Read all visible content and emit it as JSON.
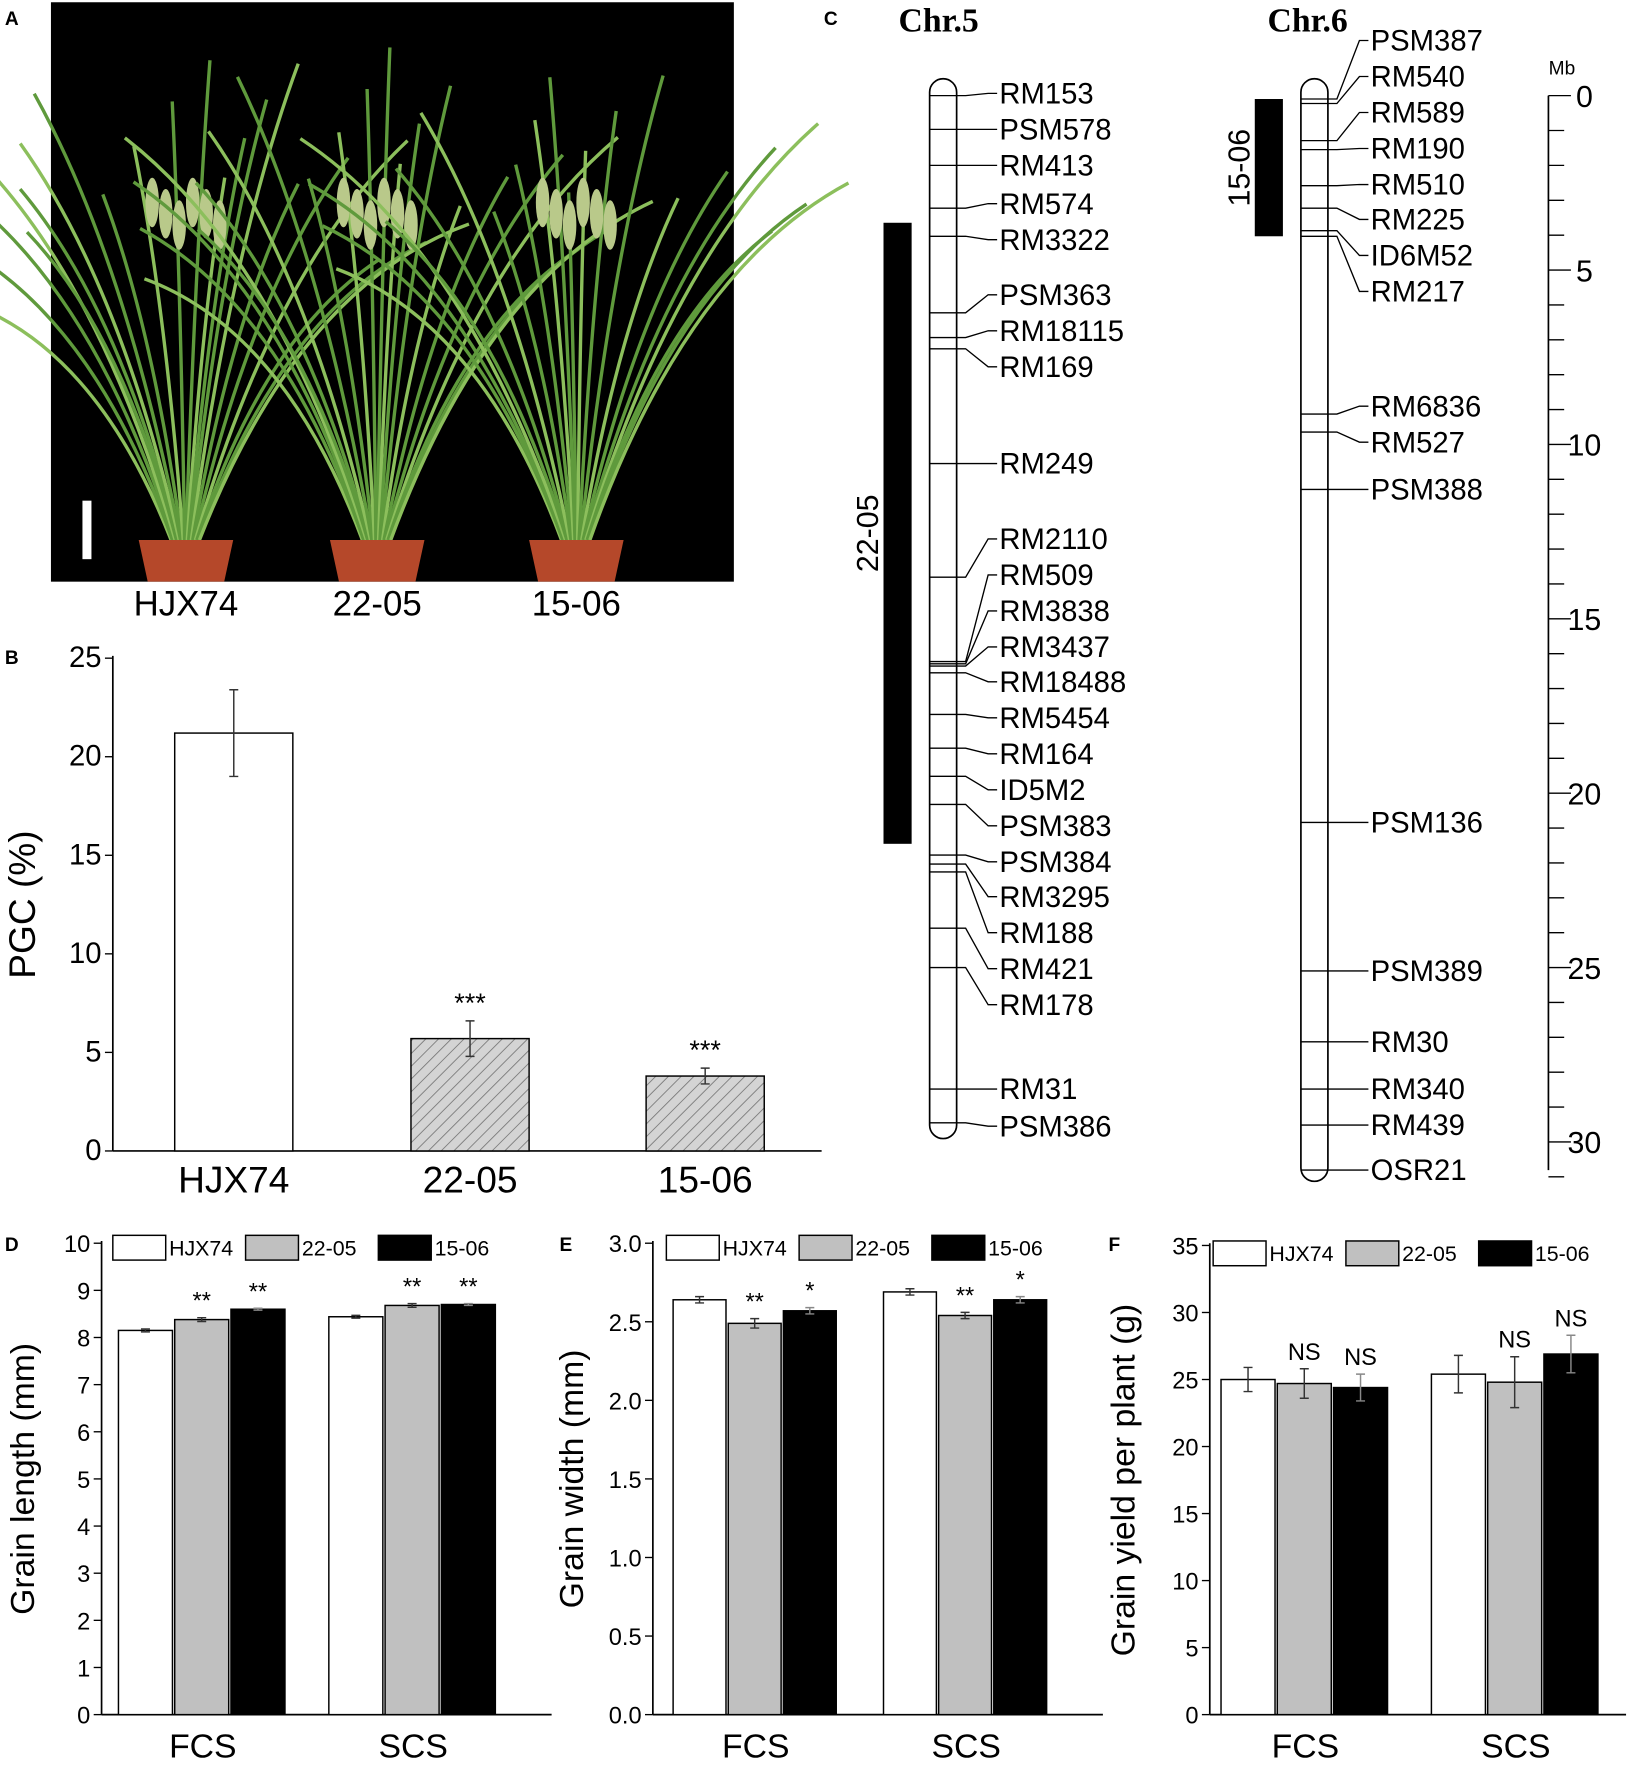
{
  "panels": {
    "a": "A",
    "b": "B",
    "c": "C",
    "d": "D",
    "e": "E",
    "f": "F"
  },
  "photo": {
    "labels": [
      "HJX74",
      "22-05",
      "15-06"
    ],
    "background": "#000000"
  },
  "diagram": {
    "scale_unit": "Mb",
    "scale_ticks": [
      "0",
      "5",
      "10",
      "15",
      "20",
      "25",
      "30"
    ],
    "chromosomes": [
      {
        "name": "Chr.5",
        "segment_label": "22-05",
        "markers": [
          "RM153",
          "PSM578",
          "RM413",
          "RM574",
          "RM3322",
          "PSM363",
          "RM18115",
          "RM169",
          "RM249",
          "RM2110",
          "RM509",
          "RM3838",
          "RM3437",
          "RM18488",
          "RM5454",
          "RM164",
          "ID5M2",
          "PSM383",
          "PSM384",
          "RM3295",
          "RM188",
          "RM421",
          "RM178",
          "RM31",
          "PSM386"
        ]
      },
      {
        "name": "Chr.6",
        "segment_label": "15-06",
        "markers": [
          "PSM387",
          "RM540",
          "RM589",
          "RM190",
          "RM510",
          "RM225",
          "ID6M52",
          "RM217",
          "RM6836",
          "RM527",
          "PSM388",
          "PSM136",
          "PSM389",
          "RM30",
          "RM340",
          "RM439",
          "OSR21"
        ]
      }
    ]
  },
  "chart_data": [
    {
      "id": "B",
      "type": "bar",
      "categories": [
        "HJX74",
        "22-05",
        "15-06"
      ],
      "values": [
        21.2,
        5.7,
        3.8
      ],
      "errors": [
        2.2,
        0.9,
        0.4
      ],
      "annotations": [
        "",
        "***",
        "***"
      ],
      "ylabel": "PGC  (%)",
      "ylim": [
        0,
        25
      ],
      "yticks": [
        0,
        5,
        10,
        15,
        20,
        25
      ],
      "fills": [
        "#ffffff",
        "hatched-gray",
        "hatched-gray"
      ]
    },
    {
      "id": "D",
      "type": "bar",
      "categories": [
        "FCS",
        "SCS"
      ],
      "ylabel": "Grain length (mm)",
      "ylim": [
        0,
        10
      ],
      "yticks": [
        0,
        1,
        2,
        3,
        4,
        5,
        6,
        7,
        8,
        9,
        10
      ],
      "legend": "top",
      "series": [
        {
          "name": "HJX74",
          "color": "#ffffff",
          "values": [
            8.15,
            8.44
          ],
          "errors": [
            0.03,
            0.03
          ],
          "annotations": [
            "",
            ""
          ]
        },
        {
          "name": "22-05",
          "color": "#c0c0c0",
          "values": [
            8.38,
            8.68
          ],
          "errors": [
            0.04,
            0.04
          ],
          "annotations": [
            "**",
            "**"
          ]
        },
        {
          "name": "15-06",
          "color": "#000000",
          "values": [
            8.6,
            8.7
          ],
          "errors": [
            0.02,
            0.02
          ],
          "annotations": [
            "**",
            "**"
          ]
        }
      ]
    },
    {
      "id": "E",
      "type": "bar",
      "categories": [
        "FCS",
        "SCS"
      ],
      "ylabel": "Grain width (mm)",
      "ylim": [
        0,
        3.0
      ],
      "yticks": [
        "0.0",
        "0.5",
        "1.0",
        "1.5",
        "2.0",
        "2.5",
        "3.0"
      ],
      "legend": "top",
      "series": [
        {
          "name": "HJX74",
          "color": "#ffffff",
          "values": [
            2.64,
            2.69
          ],
          "errors": [
            0.02,
            0.02
          ],
          "annotations": [
            "",
            ""
          ]
        },
        {
          "name": "22-05",
          "color": "#c0c0c0",
          "values": [
            2.49,
            2.54
          ],
          "errors": [
            0.03,
            0.02
          ],
          "annotations": [
            "**",
            "**"
          ]
        },
        {
          "name": "15-06",
          "color": "#000000",
          "values": [
            2.57,
            2.64
          ],
          "errors": [
            0.02,
            0.02
          ],
          "annotations": [
            "*",
            "*"
          ]
        }
      ]
    },
    {
      "id": "F",
      "type": "bar",
      "categories": [
        "FCS",
        "SCS"
      ],
      "ylabel": "Grain yield per plant (g)",
      "ylim": [
        0,
        35
      ],
      "yticks": [
        0,
        5,
        10,
        15,
        20,
        25,
        30,
        35
      ],
      "legend": "top",
      "series": [
        {
          "name": "HJX74",
          "color": "#ffffff",
          "values": [
            25.0,
            25.4
          ],
          "errors": [
            0.9,
            1.4
          ],
          "annotations": [
            "",
            ""
          ]
        },
        {
          "name": "22-05",
          "color": "#c0c0c0",
          "values": [
            24.7,
            24.8
          ],
          "errors": [
            1.1,
            1.9
          ],
          "annotations": [
            "NS",
            "NS"
          ]
        },
        {
          "name": "15-06",
          "color": "#000000",
          "values": [
            24.4,
            26.9
          ],
          "errors": [
            1.0,
            1.4
          ],
          "annotations": [
            "NS",
            "NS"
          ]
        }
      ]
    }
  ]
}
